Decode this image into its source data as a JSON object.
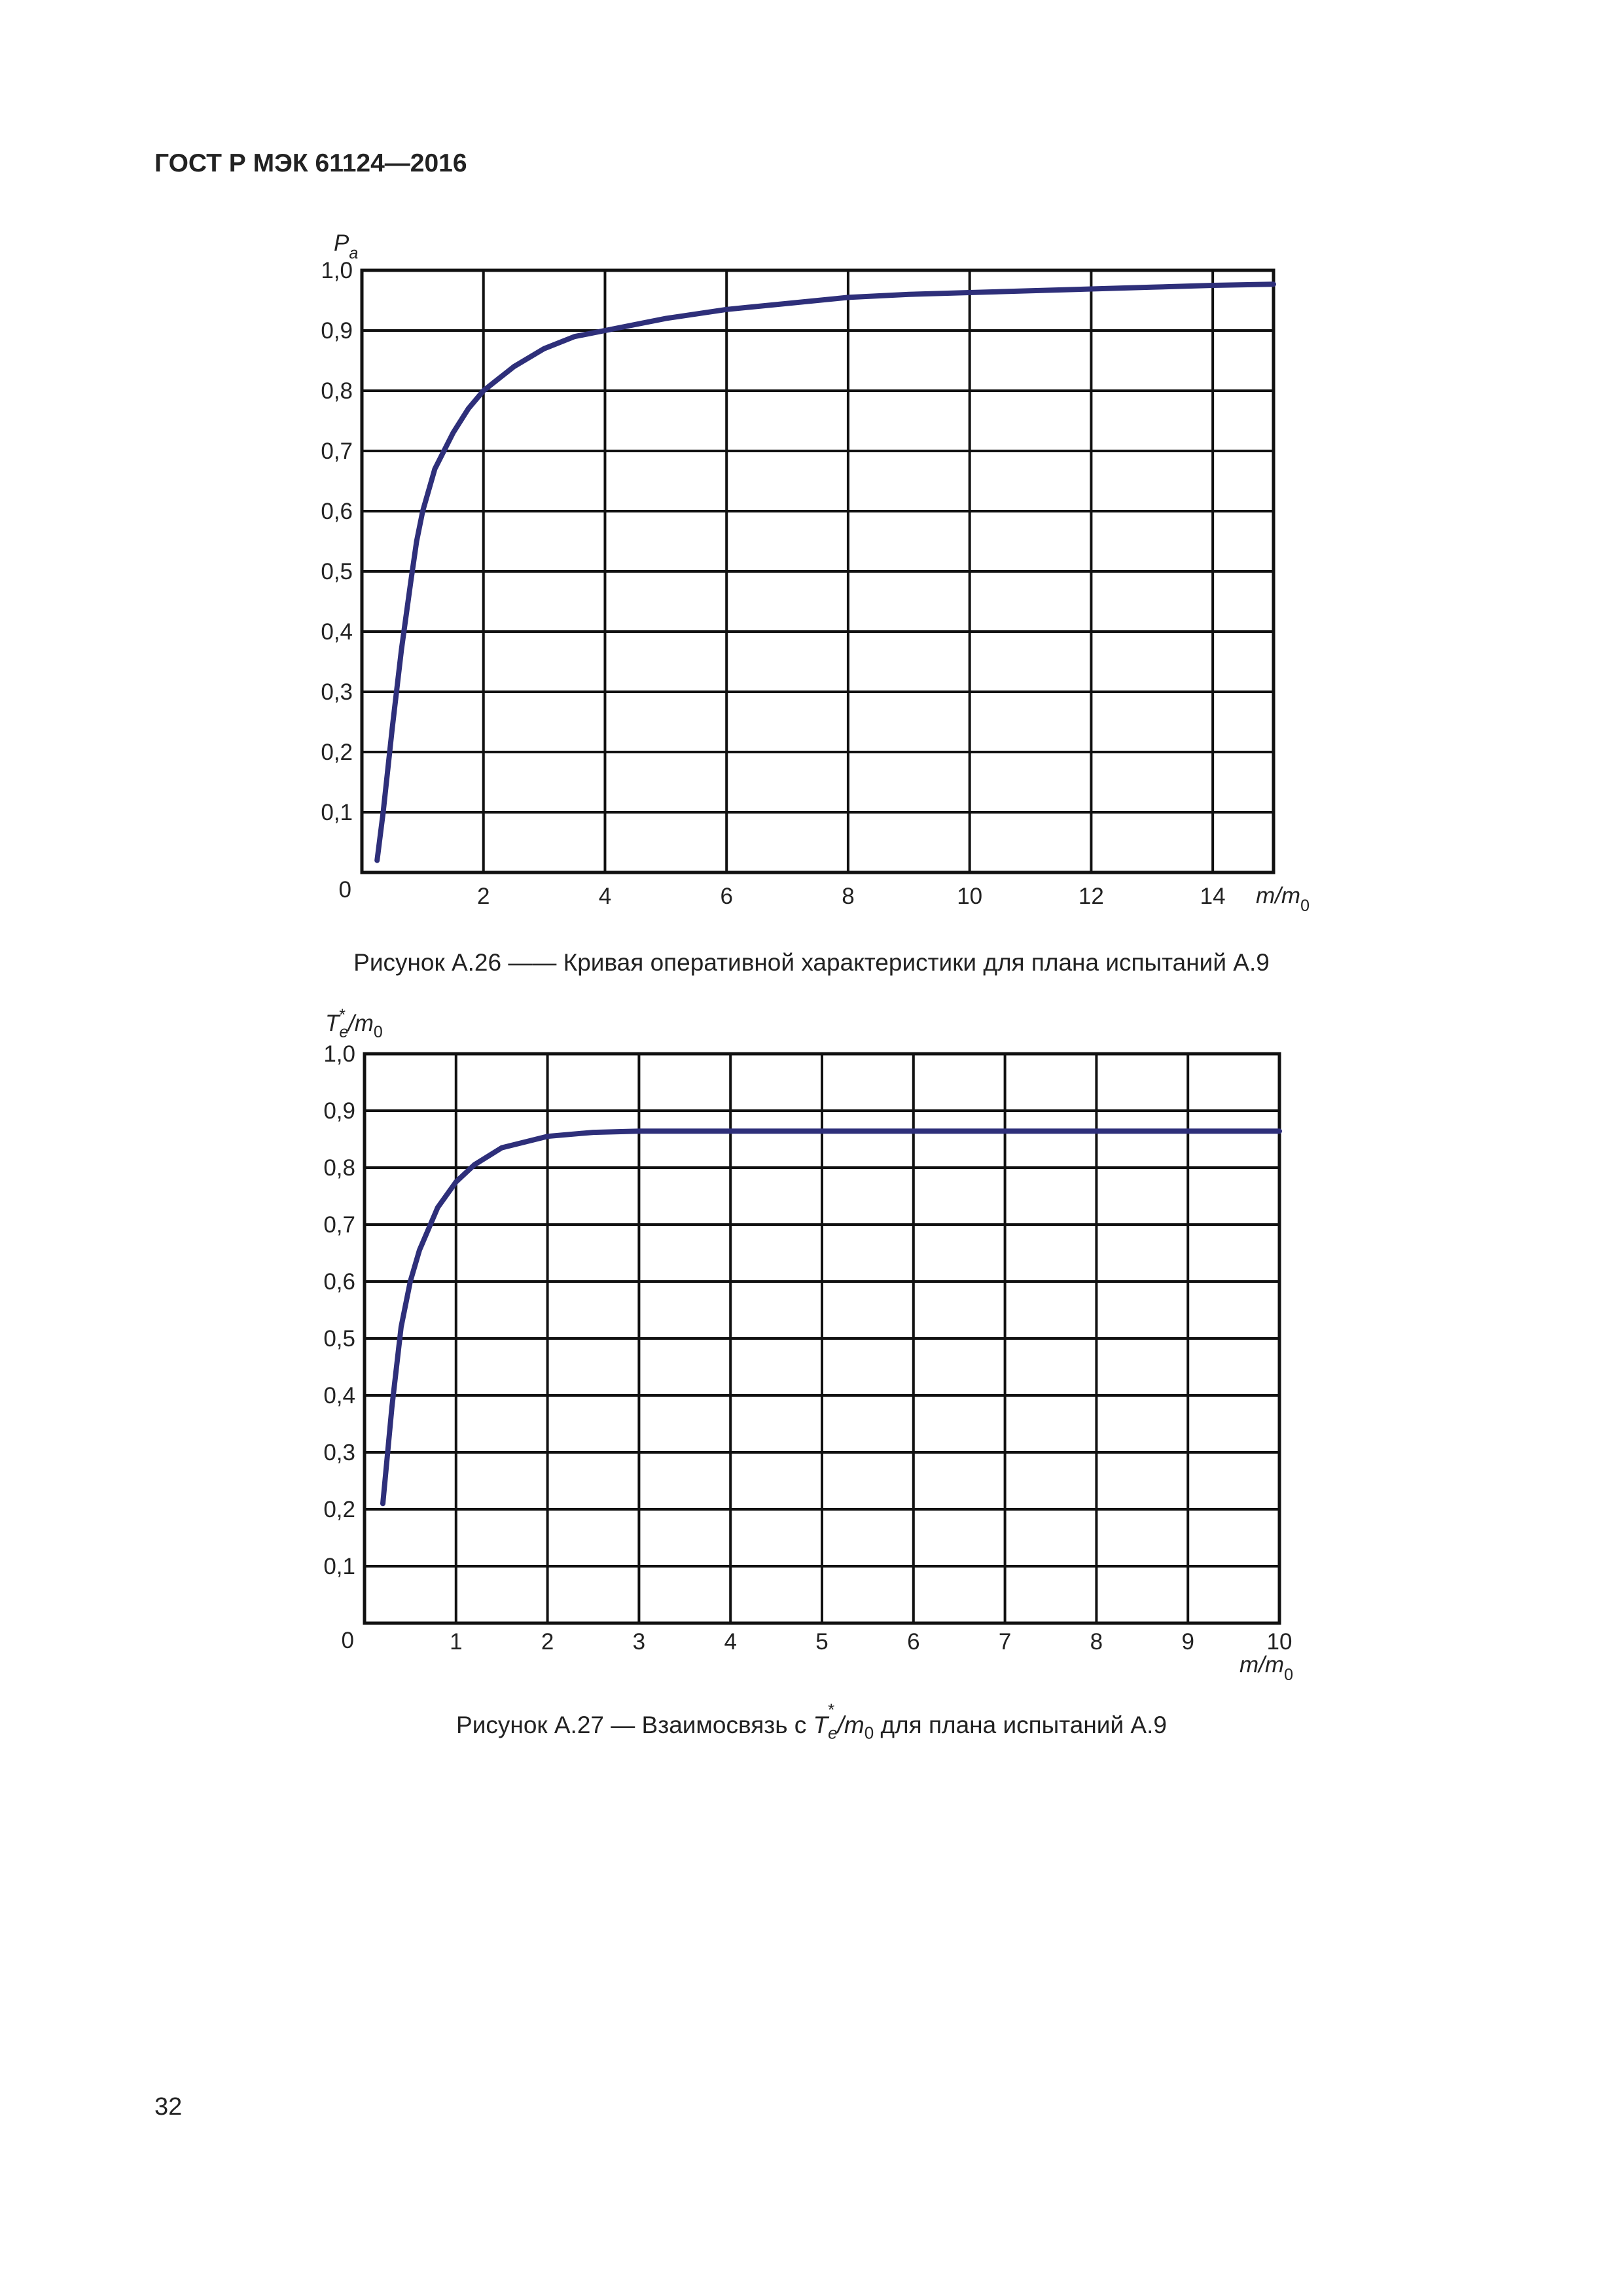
{
  "header": {
    "document_id": "ГОСТ Р МЭК 61124—2016"
  },
  "footer": {
    "page_number": "32"
  },
  "figures": [
    {
      "caption": "Рисунок А.26 —— Кривая оперативной характеристики для плана испытаний А.9"
    },
    {
      "caption_prefix": "Рисунок А.27 — Взаимосвязь с ",
      "caption_symbol": "T",
      "caption_sub": "e",
      "caption_sup": "*",
      "caption_mid": "/m",
      "caption_mid_sub": "0",
      "caption_suffix": " для плана испытаний А.9"
    }
  ],
  "chart_data": [
    {
      "type": "line",
      "title": "",
      "ylabel": "P",
      "ylabel_sub": "a",
      "xlabel": "m/m",
      "xlabel_sub": "0",
      "origin_label": "0",
      "xlim": [
        0,
        15
      ],
      "ylim": [
        0,
        1.0
      ],
      "grid": true,
      "x_ticks": [
        2,
        4,
        6,
        8,
        10,
        12,
        14
      ],
      "x_tick_labels": [
        "2",
        "4",
        "6",
        "8",
        "10",
        "12",
        "14"
      ],
      "y_ticks": [
        0.1,
        0.2,
        0.3,
        0.4,
        0.5,
        0.6,
        0.7,
        0.8,
        0.9,
        1.0
      ],
      "y_tick_labels": [
        "0,1",
        "0,2",
        "0,3",
        "0,4",
        "0,5",
        "0,6",
        "0,7",
        "0,8",
        "0,9",
        "1,0"
      ],
      "series": [
        {
          "color": "#2e2f7a",
          "x": [
            0.25,
            0.35,
            0.5,
            0.65,
            0.8,
            0.9,
            1.0,
            1.2,
            1.5,
            1.75,
            2.0,
            2.5,
            3.0,
            3.5,
            4.0,
            5.0,
            6.0,
            7.0,
            8.0,
            9.0,
            10.0,
            11.0,
            12.0,
            13.0,
            14.0,
            15.0
          ],
          "y": [
            0.02,
            0.1,
            0.24,
            0.37,
            0.48,
            0.55,
            0.6,
            0.67,
            0.73,
            0.77,
            0.8,
            0.84,
            0.87,
            0.89,
            0.9,
            0.92,
            0.935,
            0.945,
            0.955,
            0.96,
            0.963,
            0.966,
            0.969,
            0.972,
            0.975,
            0.977
          ]
        }
      ]
    },
    {
      "type": "line",
      "title": "",
      "ylabel": "T",
      "ylabel_sub": "e",
      "ylabel_sup": "*",
      "ylabel_rest": "/m",
      "ylabel_rest_sub": "0",
      "xlabel": "m/m",
      "xlabel_sub": "0",
      "origin_label": "0",
      "xlim": [
        0,
        10
      ],
      "ylim": [
        0,
        1.0
      ],
      "grid": true,
      "x_ticks": [
        1,
        2,
        3,
        4,
        5,
        6,
        7,
        8,
        9,
        10
      ],
      "x_tick_labels": [
        "1",
        "2",
        "3",
        "4",
        "5",
        "6",
        "7",
        "8",
        "9",
        "10"
      ],
      "y_ticks": [
        0.1,
        0.2,
        0.3,
        0.4,
        0.5,
        0.6,
        0.7,
        0.8,
        0.9,
        1.0
      ],
      "y_tick_labels": [
        "0,1",
        "0,2",
        "0,3",
        "0,4",
        "0,5",
        "0,6",
        "0,7",
        "0,8",
        "0,9",
        "1,0"
      ],
      "series": [
        {
          "color": "#2e2f7a",
          "x": [
            0.2,
            0.3,
            0.4,
            0.5,
            0.6,
            0.8,
            1.0,
            1.2,
            1.5,
            2.0,
            2.5,
            3.0,
            4.0,
            5.0,
            6.0,
            7.0,
            8.0,
            9.0,
            10.0
          ],
          "y": [
            0.21,
            0.38,
            0.52,
            0.6,
            0.655,
            0.73,
            0.775,
            0.805,
            0.835,
            0.855,
            0.862,
            0.864,
            0.864,
            0.864,
            0.864,
            0.864,
            0.864,
            0.864,
            0.864
          ]
        }
      ]
    }
  ]
}
